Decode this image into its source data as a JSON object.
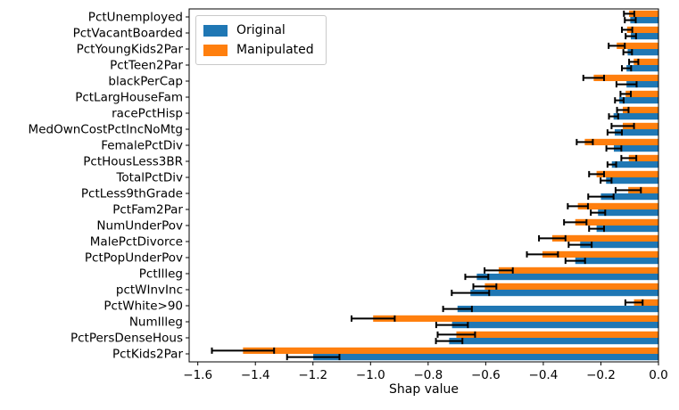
{
  "chart_data": {
    "type": "bar",
    "orientation": "horizontal",
    "title": "",
    "xlabel": "Shap value",
    "ylabel": "",
    "grid": false,
    "background": "#ffffff",
    "axes_frame_color": "#000000",
    "error_bar_color": "#000000",
    "xlim": [
      -1.63,
      0.0
    ],
    "x_ticks": [
      -1.6,
      -1.4,
      -1.2,
      -1.0,
      -0.8,
      -0.6,
      -0.4,
      -0.2,
      0.0
    ],
    "x_tick_labels": [
      "−1.6",
      "−1.4",
      "−1.2",
      "−1.0",
      "−0.8",
      "−0.6",
      "−0.4",
      "−0.2",
      "0.0"
    ],
    "categories": [
      "PctUnemployed",
      "PctVacantBoarded",
      "PctYoungKids2Par",
      "PctTeen2Par",
      "blackPerCap",
      "PctLargHouseFam",
      "racePctHisp",
      "MedOwnCostPctIncNoMtg",
      "FemalePctDiv",
      "PctHousLess3BR",
      "TotalPctDiv",
      "PctLess9thGrade",
      "PctFam2Par",
      "NumUnderPov",
      "MalePctDivorce",
      "PctPopUnderPov",
      "PctIlleg",
      "pctWInvInc",
      "PctWhite>90",
      "NumIlleg",
      "PctPersDenseHous",
      "PctKids2Par"
    ],
    "series": [
      {
        "name": "Original",
        "color": "#1f77b4",
        "values": [
          -0.098,
          -0.096,
          -0.107,
          -0.111,
          -0.111,
          -0.136,
          -0.156,
          -0.152,
          -0.155,
          -0.162,
          -0.182,
          -0.2,
          -0.21,
          -0.215,
          -0.272,
          -0.289,
          -0.631,
          -0.653,
          -0.698,
          -0.717,
          -0.727,
          -1.199
        ],
        "errors": [
          0.019,
          0.018,
          0.015,
          0.016,
          0.035,
          0.015,
          0.016,
          0.025,
          0.026,
          0.015,
          0.019,
          0.044,
          0.025,
          0.026,
          0.04,
          0.034,
          0.04,
          0.065,
          0.05,
          0.055,
          0.046,
          0.091
        ]
      },
      {
        "name": "Manipulated",
        "color": "#ff7f0e",
        "values": [
          -0.102,
          -0.109,
          -0.145,
          -0.086,
          -0.225,
          -0.114,
          -0.124,
          -0.124,
          -0.256,
          -0.103,
          -0.215,
          -0.105,
          -0.28,
          -0.289,
          -0.369,
          -0.403,
          -0.555,
          -0.603,
          -0.085,
          -0.991,
          -0.702,
          -1.443
        ],
        "errors": [
          0.018,
          0.018,
          0.028,
          0.016,
          0.036,
          0.018,
          0.02,
          0.039,
          0.028,
          0.026,
          0.026,
          0.044,
          0.035,
          0.039,
          0.046,
          0.054,
          0.049,
          0.04,
          0.03,
          0.075,
          0.065,
          0.108
        ]
      }
    ],
    "row_layout": {
      "top": "Manipulated",
      "bottom": "Original"
    },
    "legend": {
      "position": "upper left",
      "entries": [
        "Original",
        "Manipulated"
      ]
    }
  }
}
